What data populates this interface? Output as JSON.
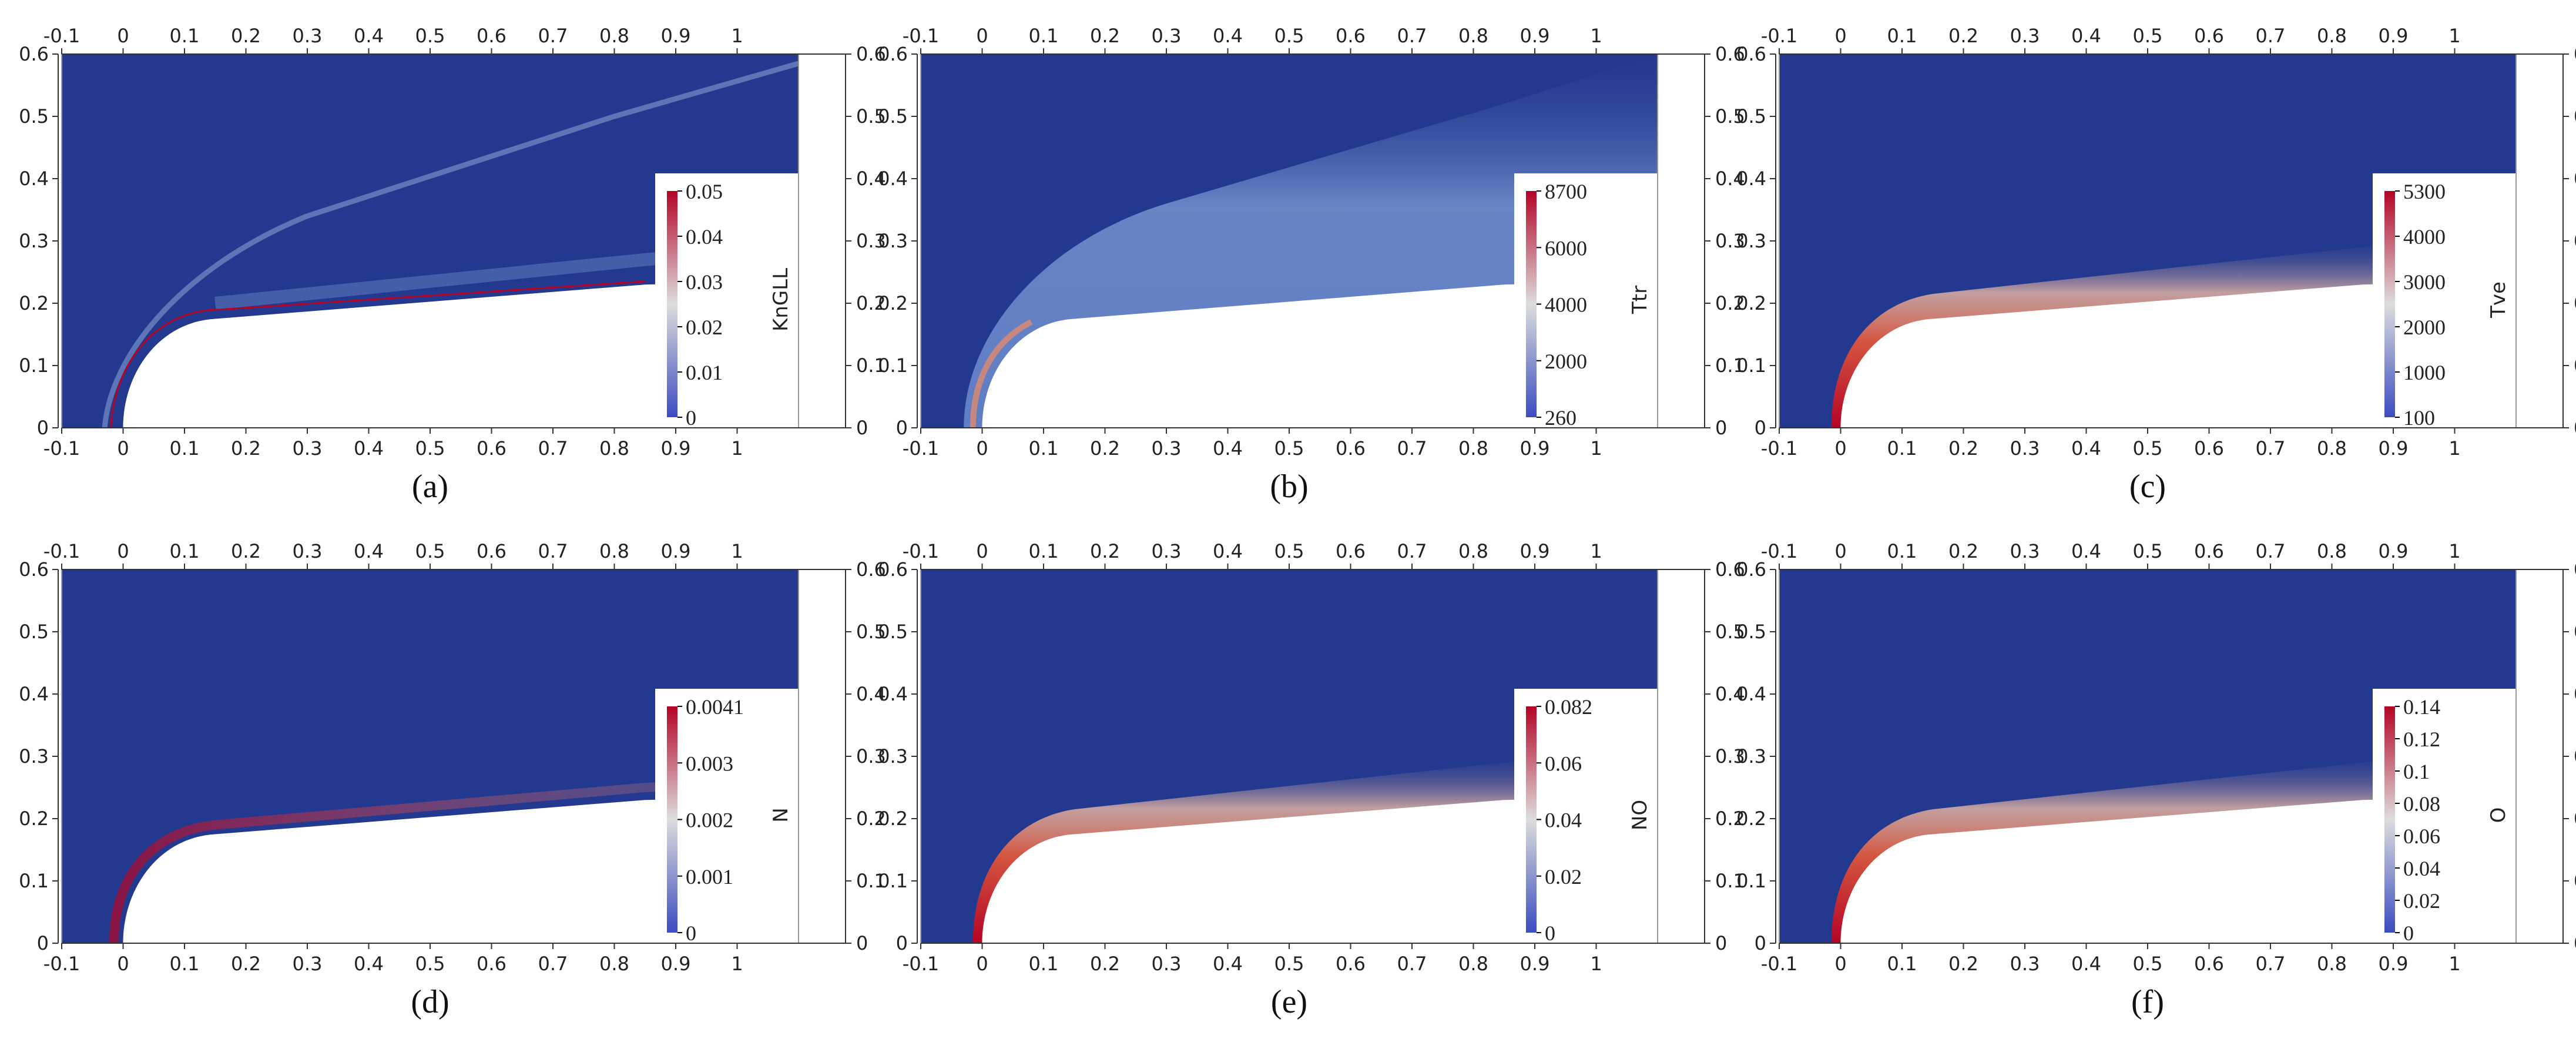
{
  "colors": {
    "background": "#23398f",
    "body": "#ffffff",
    "cmap_low": "#3b4cc0",
    "cmap_mid": "#dddddd",
    "cmap_high": "#b40426",
    "axis": "#000000"
  },
  "chart_data": [
    {
      "type": "heatmap",
      "caption": "(a)",
      "colorbar_label": "KnGLL",
      "colorbar_ticks": [
        "0.05",
        "0.04",
        "0.03",
        "0.02",
        "0.01",
        "0"
      ],
      "colorbar_range": [
        0,
        0.05
      ],
      "field": "shock-thin",
      "xlim": [
        -0.1,
        1.1
      ],
      "ylim": [
        0,
        0.6
      ],
      "xticks": [
        "-0.1",
        "0",
        "0.1",
        "0.2",
        "0.3",
        "0.4",
        "0.5",
        "0.6",
        "0.7",
        "0.8",
        "0.9",
        "1"
      ],
      "yticks": [
        "0",
        "0.1",
        "0.2",
        "0.3",
        "0.4",
        "0.5",
        "0.6"
      ],
      "legend_position": "right"
    },
    {
      "type": "heatmap",
      "caption": "(b)",
      "colorbar_label": "Ttr",
      "colorbar_ticks": [
        "8700",
        "6000",
        "4000",
        "2000",
        "260"
      ],
      "colorbar_range": [
        260,
        8700
      ],
      "field": "shock-layer",
      "xlim": [
        -0.1,
        1.1
      ],
      "ylim": [
        0,
        0.6
      ],
      "xticks": [
        "-0.1",
        "0",
        "0.1",
        "0.2",
        "0.3",
        "0.4",
        "0.5",
        "0.6",
        "0.7",
        "0.8",
        "0.9",
        "1"
      ],
      "yticks": [
        "0",
        "0.1",
        "0.2",
        "0.3",
        "0.4",
        "0.5",
        "0.6"
      ],
      "legend_position": "right"
    },
    {
      "type": "heatmap",
      "caption": "(c)",
      "colorbar_label": "Tve",
      "colorbar_ticks": [
        "5300",
        "4000",
        "3000",
        "2000",
        "1000",
        "100"
      ],
      "colorbar_range": [
        100,
        5300
      ],
      "field": "boundary-layer",
      "xlim": [
        -0.1,
        1.1
      ],
      "ylim": [
        0,
        0.6
      ],
      "xticks": [
        "-0.1",
        "0",
        "0.1",
        "0.2",
        "0.3",
        "0.4",
        "0.5",
        "0.6",
        "0.7",
        "0.8",
        "0.9",
        "1"
      ],
      "yticks": [
        "0",
        "0.1",
        "0.2",
        "0.3",
        "0.4",
        "0.5",
        "0.6"
      ],
      "legend_position": "right"
    },
    {
      "type": "heatmap",
      "caption": "(d)",
      "colorbar_label": "N",
      "colorbar_ticks": [
        "0.0041",
        "0.003",
        "0.002",
        "0.001",
        "0"
      ],
      "colorbar_range": [
        0,
        0.0041
      ],
      "field": "nose-only",
      "xlim": [
        -0.1,
        1.1
      ],
      "ylim": [
        0,
        0.6
      ],
      "xticks": [
        "-0.1",
        "0",
        "0.1",
        "0.2",
        "0.3",
        "0.4",
        "0.5",
        "0.6",
        "0.7",
        "0.8",
        "0.9",
        "1"
      ],
      "yticks": [
        "0",
        "0.1",
        "0.2",
        "0.3",
        "0.4",
        "0.5",
        "0.6"
      ],
      "legend_position": "right"
    },
    {
      "type": "heatmap",
      "caption": "(e)",
      "colorbar_label": "NO",
      "colorbar_ticks": [
        "0.082",
        "0.06",
        "0.04",
        "0.02",
        "0"
      ],
      "colorbar_range": [
        0,
        0.082
      ],
      "field": "boundary-layer",
      "xlim": [
        -0.1,
        1.1
      ],
      "ylim": [
        0,
        0.6
      ],
      "xticks": [
        "-0.1",
        "0",
        "0.1",
        "0.2",
        "0.3",
        "0.4",
        "0.5",
        "0.6",
        "0.7",
        "0.8",
        "0.9",
        "1"
      ],
      "yticks": [
        "0",
        "0.1",
        "0.2",
        "0.3",
        "0.4",
        "0.5",
        "0.6"
      ],
      "legend_position": "right"
    },
    {
      "type": "heatmap",
      "caption": "(f)",
      "colorbar_label": "O",
      "colorbar_ticks": [
        "0.14",
        "0.12",
        "0.1",
        "0.08",
        "0.06",
        "0.04",
        "0.02",
        "0"
      ],
      "colorbar_range": [
        0,
        0.14
      ],
      "field": "boundary-layer",
      "xlim": [
        -0.1,
        1.1
      ],
      "ylim": [
        0,
        0.6
      ],
      "xticks": [
        "-0.1",
        "0",
        "0.1",
        "0.2",
        "0.3",
        "0.4",
        "0.5",
        "0.6",
        "0.7",
        "0.8",
        "0.9",
        "1"
      ],
      "yticks": [
        "0",
        "0.1",
        "0.2",
        "0.3",
        "0.4",
        "0.5",
        "0.6"
      ],
      "legend_position": "right"
    }
  ]
}
